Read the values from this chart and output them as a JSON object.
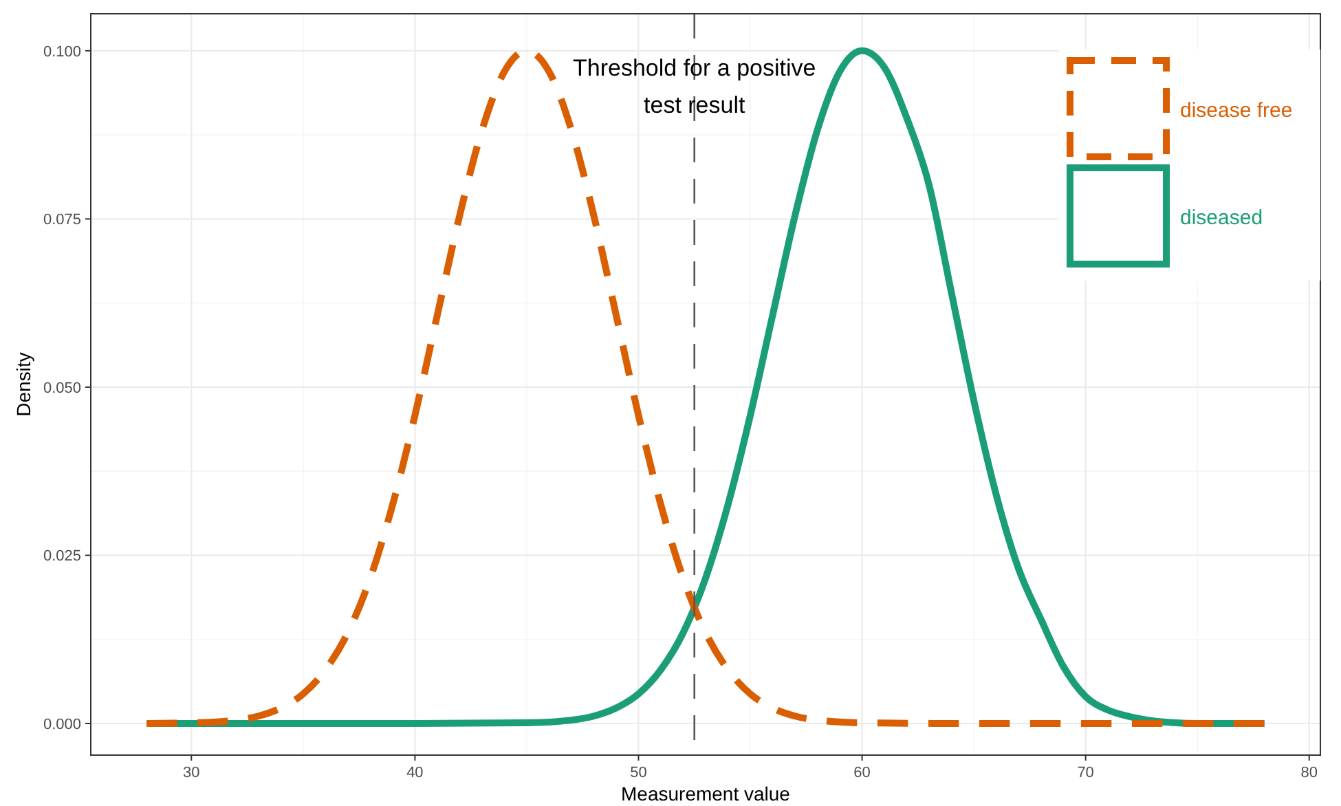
{
  "chart_data": {
    "type": "line",
    "xlabel": "Measurement value",
    "ylabel": "Density",
    "xlim": [
      25.5,
      80.5
    ],
    "xticks": [
      30,
      40,
      50,
      60,
      70,
      80
    ],
    "ylim": [
      -0.0047,
      0.1055
    ],
    "yticks": [
      {
        "value": 0,
        "label": "0.000"
      },
      {
        "value": 0.025,
        "label": "0.025"
      },
      {
        "value": 0.05,
        "label": "0.050"
      },
      {
        "value": 0.075,
        "label": "0.075"
      },
      {
        "value": 0.1,
        "label": "0.100"
      }
    ],
    "grid": true,
    "legend": "top right",
    "marker": "none",
    "ref_lines": [
      {
        "axis": "x",
        "value": 52.5,
        "label": "Threshold for a positive test result",
        "color": "#555555",
        "line_style": "dashed"
      }
    ],
    "series": [
      {
        "name": "disease free",
        "color": "#d95f02",
        "line_style": "dashed",
        "x": [
          28,
          30,
          31,
          32,
          33,
          34,
          35,
          36,
          37,
          38,
          39,
          40,
          41,
          42,
          43,
          44,
          45,
          46,
          47,
          48,
          49,
          50,
          51,
          52,
          53,
          54,
          55,
          56,
          57,
          58,
          60,
          65,
          70,
          75,
          78
        ],
        "values": [
          0,
          0.0001,
          0.0002,
          0.0005,
          0.0011,
          0.0023,
          0.0044,
          0.008,
          0.0135,
          0.0216,
          0.0325,
          0.0458,
          0.0607,
          0.0755,
          0.0882,
          0.0969,
          0.1,
          0.0969,
          0.0882,
          0.0755,
          0.0607,
          0.0458,
          0.0325,
          0.0216,
          0.0135,
          0.008,
          0.0044,
          0.0023,
          0.0011,
          0.0005,
          0.0001,
          0,
          0,
          0,
          0
        ]
      },
      {
        "name": "diseased",
        "color": "#1b9e77",
        "line_style": "solid",
        "x": [
          28,
          35,
          40,
          45,
          47,
          48,
          49,
          50,
          51,
          52,
          53,
          54,
          55,
          56,
          57,
          58,
          59,
          60,
          61,
          62,
          63,
          64,
          65,
          66,
          67,
          68,
          69,
          70,
          71,
          72,
          73,
          74,
          75,
          78
        ],
        "values": [
          0,
          0,
          0,
          0.0001,
          0.0005,
          0.0011,
          0.0023,
          0.0044,
          0.008,
          0.0135,
          0.0216,
          0.0325,
          0.0458,
          0.0607,
          0.0755,
          0.0882,
          0.0969,
          0.1,
          0.0975,
          0.09,
          0.08,
          0.064,
          0.048,
          0.034,
          0.023,
          0.0155,
          0.0085,
          0.004,
          0.002,
          0.001,
          0.0004,
          0.0001,
          0,
          0
        ]
      }
    ]
  }
}
